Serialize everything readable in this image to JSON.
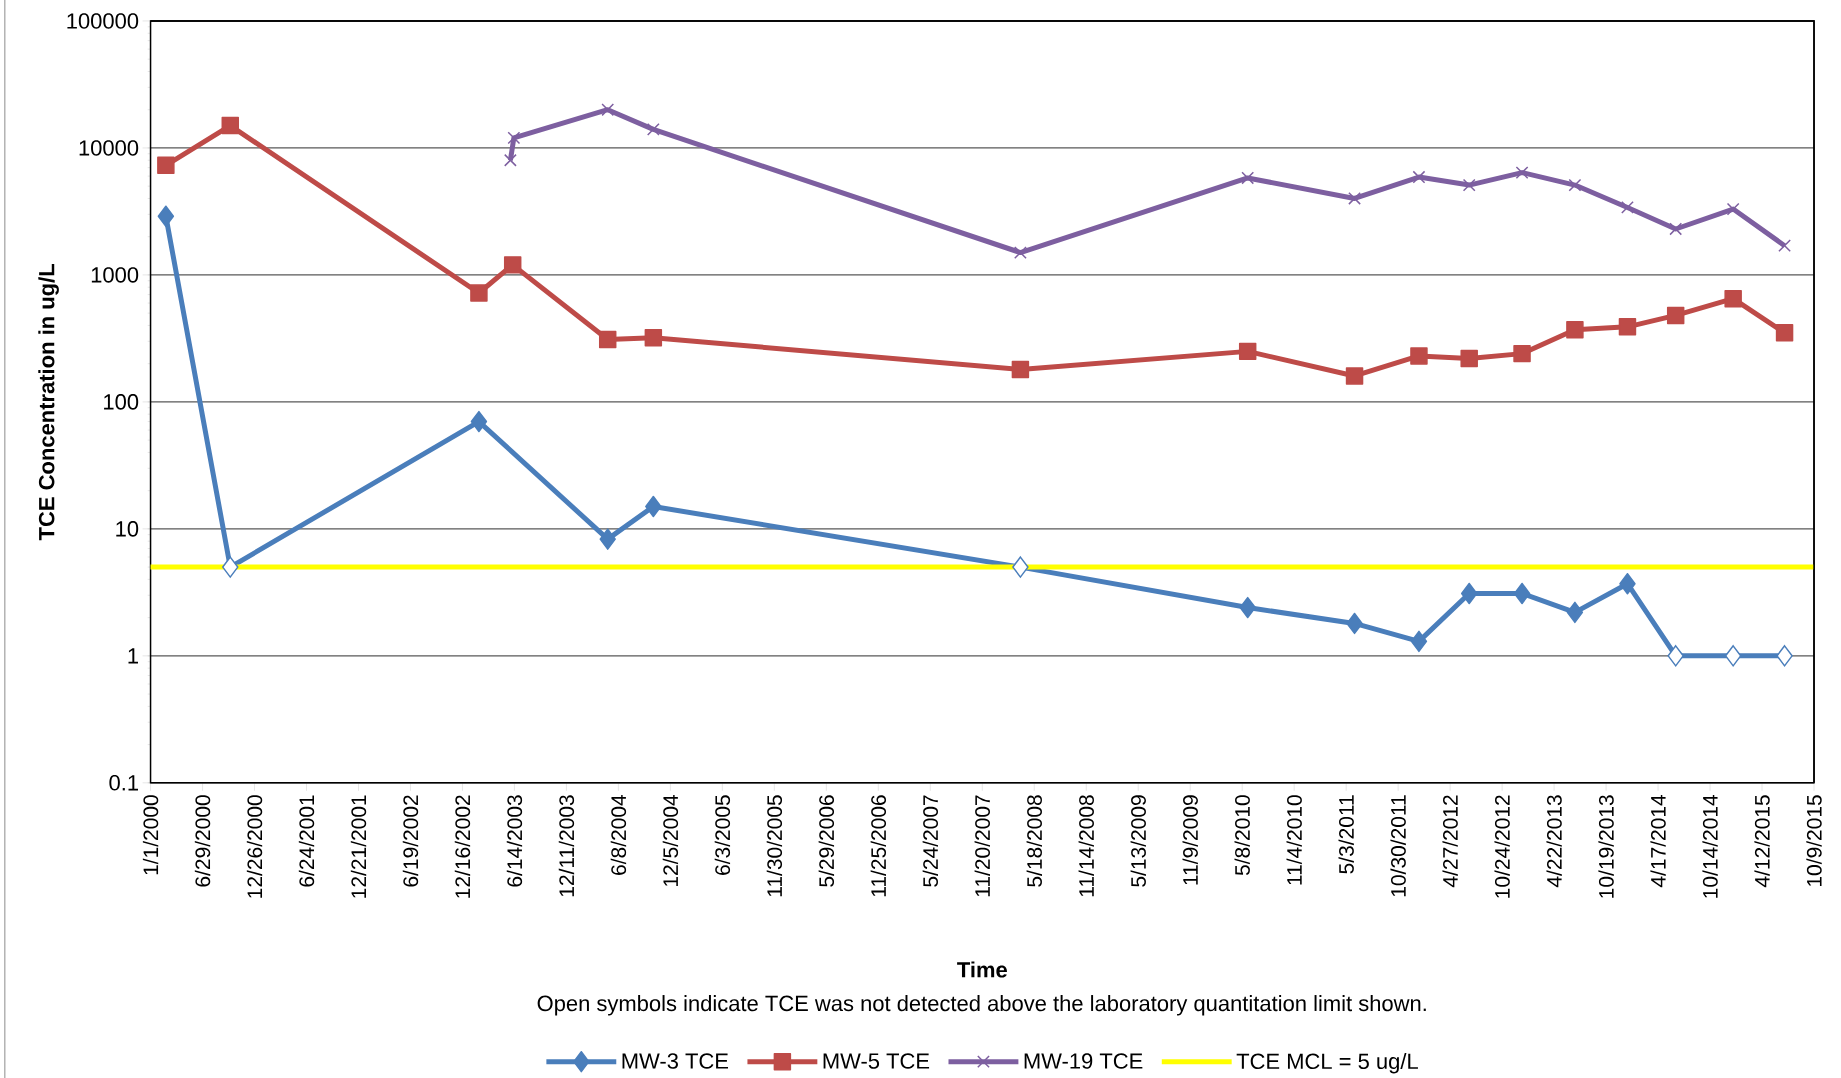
{
  "chart_data": {
    "type": "line",
    "xlabel": "Time",
    "ylabel": "TCE Concentration in ug/L",
    "annotations": [
      "Open symbols indicate TCE was not detected above the laboratory quantitation limit shown."
    ],
    "log": "y",
    "grid": "y",
    "legend": "bottom",
    "line_style": "solid",
    "xlim": [
      "2000-01-01",
      "2015-10-09"
    ],
    "xticks": [
      {
        "value": "2000-01-01",
        "label": "1/1/2000"
      },
      {
        "value": "2000-06-29",
        "label": "6/29/2000"
      },
      {
        "value": "2000-12-26",
        "label": "12/26/2000"
      },
      {
        "value": "2001-06-24",
        "label": "6/24/2001"
      },
      {
        "value": "2001-12-21",
        "label": "12/21/2001"
      },
      {
        "value": "2002-06-19",
        "label": "6/19/2002"
      },
      {
        "value": "2002-12-16",
        "label": "12/16/2002"
      },
      {
        "value": "2003-06-14",
        "label": "6/14/2003"
      },
      {
        "value": "2003-12-11",
        "label": "12/11/2003"
      },
      {
        "value": "2004-06-08",
        "label": "6/8/2004"
      },
      {
        "value": "2004-12-05",
        "label": "12/5/2004"
      },
      {
        "value": "2005-06-03",
        "label": "6/3/2005"
      },
      {
        "value": "2005-11-30",
        "label": "11/30/2005"
      },
      {
        "value": "2006-05-29",
        "label": "5/29/2006"
      },
      {
        "value": "2006-11-25",
        "label": "11/25/2006"
      },
      {
        "value": "2007-05-24",
        "label": "5/24/2007"
      },
      {
        "value": "2007-11-20",
        "label": "11/20/2007"
      },
      {
        "value": "2008-05-18",
        "label": "5/18/2008"
      },
      {
        "value": "2008-11-14",
        "label": "11/14/2008"
      },
      {
        "value": "2009-05-13",
        "label": "5/13/2009"
      },
      {
        "value": "2009-11-09",
        "label": "11/9/2009"
      },
      {
        "value": "2010-05-08",
        "label": "5/8/2010"
      },
      {
        "value": "2010-11-04",
        "label": "11/4/2010"
      },
      {
        "value": "2011-05-03",
        "label": "5/3/2011"
      },
      {
        "value": "2011-10-30",
        "label": "10/30/2011"
      },
      {
        "value": "2012-04-27",
        "label": "4/27/2012"
      },
      {
        "value": "2012-10-24",
        "label": "10/24/2012"
      },
      {
        "value": "2013-04-22",
        "label": "4/22/2013"
      },
      {
        "value": "2013-10-19",
        "label": "10/19/2013"
      },
      {
        "value": "2014-04-17",
        "label": "4/17/2014"
      },
      {
        "value": "2014-10-14",
        "label": "10/14/2014"
      },
      {
        "value": "2015-04-12",
        "label": "4/12/2015"
      },
      {
        "value": "2015-10-09",
        "label": "10/9/2015"
      }
    ],
    "ylim": [
      0.1,
      100000
    ],
    "yticks": [
      0.1,
      1,
      10,
      100,
      1000,
      10000,
      100000
    ],
    "series": [
      {
        "name": "MW-3 TCE",
        "color": "#4a7ebb",
        "marker": "diamond",
        "x": [
          "2000-02-23",
          "2000-10-03",
          "2003-02-11",
          "2004-05-02",
          "2004-10-07",
          "2008-03-31",
          "2010-05-27",
          "2011-06-01",
          "2012-01-10",
          "2012-07-02",
          "2013-01-01",
          "2013-07-03",
          "2014-01-01",
          "2014-06-17",
          "2015-01-02",
          "2015-06-29"
        ],
        "values": [
          2900,
          5,
          70,
          8.3,
          15,
          5,
          2.4,
          1.8,
          1.3,
          3.1,
          3.1,
          2.2,
          3.7,
          1,
          1,
          1
        ],
        "colors": [
          "#4a7ebb",
          "#ffffff",
          "#4a7ebb",
          "#4a7ebb",
          "#4a7ebb",
          "#ffffff",
          "#4a7ebb",
          "#4a7ebb",
          "#4a7ebb",
          "#4a7ebb",
          "#4a7ebb",
          "#4a7ebb",
          "#4a7ebb",
          "#ffffff",
          "#ffffff",
          "#ffffff"
        ]
      },
      {
        "name": "MW-5 TCE",
        "color": "#be4b48",
        "marker": "square",
        "x": [
          "2000-02-23",
          "2000-10-03",
          "2003-02-11",
          "2003-06-08",
          "2004-05-02",
          "2004-10-07",
          "2008-03-31",
          "2010-05-27",
          "2011-06-01",
          "2012-01-10",
          "2012-07-02",
          "2013-01-01",
          "2013-07-03",
          "2014-01-01",
          "2014-06-17",
          "2015-01-02",
          "2015-06-29"
        ],
        "values": [
          7300,
          15000,
          720,
          1200,
          310,
          320,
          180,
          250,
          160,
          230,
          220,
          240,
          370,
          390,
          480,
          650,
          350
        ]
      },
      {
        "name": "MW-19 TCE",
        "color": "#7d5fa0",
        "marker": "cross",
        "x": [
          "2003-05-31",
          "2003-06-12",
          "2004-05-02",
          "2004-10-07",
          "2008-03-31",
          "2010-05-27",
          "2011-06-01",
          "2012-01-10",
          "2012-07-02",
          "2013-01-01",
          "2013-07-03",
          "2014-01-01",
          "2014-06-17",
          "2015-01-02",
          "2015-06-29"
        ],
        "values": [
          8000,
          12000,
          20000,
          14000,
          1500,
          5800,
          4000,
          5900,
          5100,
          6400,
          5100,
          3400,
          2300,
          3300,
          1700
        ]
      }
    ],
    "ref_lines": [
      {
        "axis": "y",
        "value": 5,
        "label": "TCE MCL = 5 ug/L",
        "color": "#ffff00",
        "line_style": "solid"
      }
    ]
  }
}
